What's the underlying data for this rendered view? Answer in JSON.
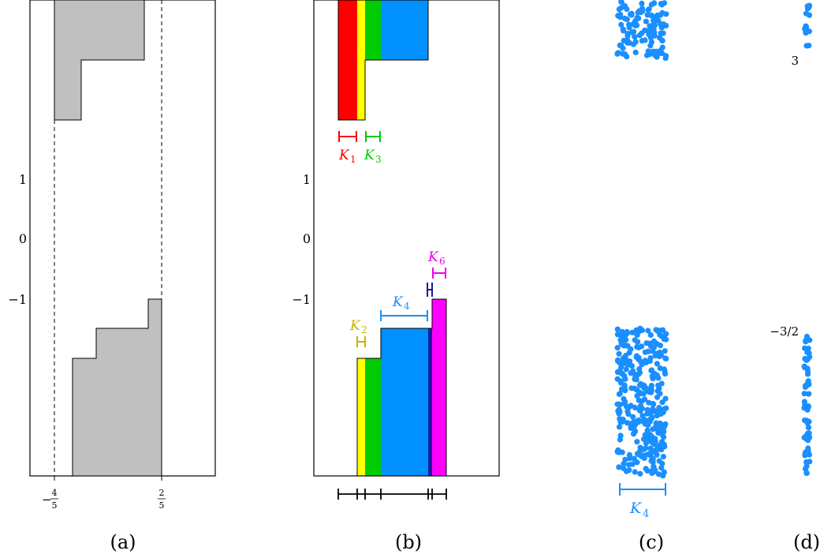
{
  "panel_labels": [
    "(a)",
    "(b)",
    "(c)",
    "(d)"
  ],
  "y_ticks": [
    "1",
    "0",
    "−1"
  ],
  "panel_a": {
    "x_tick_left_sign": "−",
    "x_tick_left_num": "4",
    "x_tick_left_den": "5",
    "x_tick_right_num": "2",
    "x_tick_right_den": "5"
  },
  "panel_b": {
    "labels": [
      {
        "name": "K",
        "sub": "1",
        "color": "#ff0000"
      },
      {
        "name": "K",
        "sub": "3",
        "color": "#00cc00"
      },
      {
        "name": "K",
        "sub": "2",
        "color": "#c8b400"
      },
      {
        "name": "K",
        "sub": "4",
        "color": "#1a8fff"
      },
      {
        "name": "K",
        "sub": "6",
        "color": "#ee00ee"
      }
    ],
    "colors": {
      "red": "#ff0000",
      "yellow": "#ffff00",
      "green": "#00cc00",
      "blue": "#0090ff",
      "navy": "#1a1aa0",
      "magenta": "#ff00ff"
    }
  },
  "panel_c": {
    "label_name": "K",
    "label_sub": "4",
    "point_color": "#1a8fff"
  },
  "panel_d": {
    "top_label": "3",
    "bottom_label": "−3/2",
    "point_color": "#1a8fff"
  }
}
